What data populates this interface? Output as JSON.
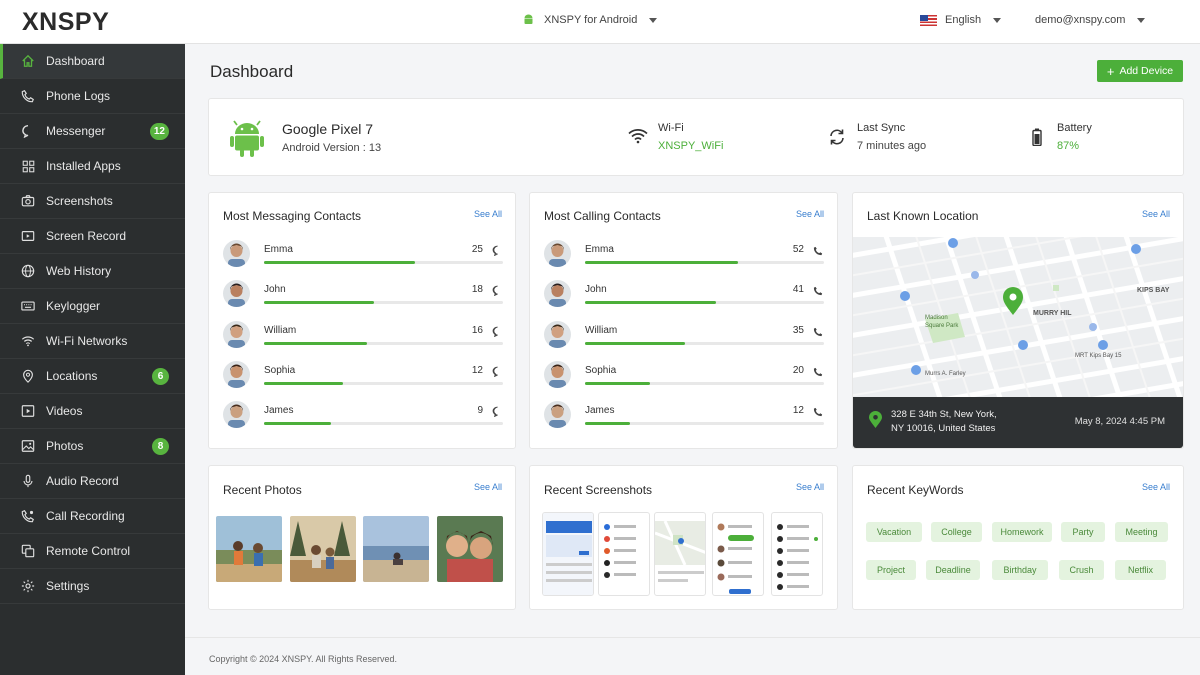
{
  "header": {
    "logo": "XNSPY",
    "device_selector": "XNSPY for Android",
    "language": "English",
    "user_email": "demo@xnspy.com"
  },
  "sidebar": {
    "items": [
      {
        "label": "Dashboard",
        "icon": "home-icon",
        "active": true
      },
      {
        "label": "Phone Logs",
        "icon": "phone-icon"
      },
      {
        "label": "Messenger",
        "icon": "chat-icon",
        "badge": "12"
      },
      {
        "label": "Installed Apps",
        "icon": "apps-icon"
      },
      {
        "label": "Screenshots",
        "icon": "camera-icon"
      },
      {
        "label": "Screen Record",
        "icon": "video-record-icon"
      },
      {
        "label": "Web History",
        "icon": "globe-icon"
      },
      {
        "label": "Keylogger",
        "icon": "keyboard-icon"
      },
      {
        "label": "Wi-Fi Networks",
        "icon": "wifi-icon"
      },
      {
        "label": "Locations",
        "icon": "location-pin-icon",
        "badge": "6"
      },
      {
        "label": "Videos",
        "icon": "film-icon"
      },
      {
        "label": "Photos",
        "icon": "image-icon",
        "badge": "8"
      },
      {
        "label": "Audio Record",
        "icon": "microphone-icon"
      },
      {
        "label": "Call Recording",
        "icon": "phone-record-icon"
      },
      {
        "label": "Remote Control",
        "icon": "remote-icon"
      },
      {
        "label": "Settings",
        "icon": "gear-icon"
      }
    ]
  },
  "main": {
    "title": "Dashboard",
    "add_device_label": "Add Device",
    "device": {
      "name": "Google Pixel 7",
      "android_version": "Android Version : 13",
      "wifi_label": "Wi-Fi",
      "wifi_value": "XNSPY_WiFi",
      "sync_label": "Last Sync",
      "sync_value": "7 minutes ago",
      "battery_label": "Battery",
      "battery_value": "87%"
    },
    "messaging": {
      "title": "Most Messaging Contacts",
      "see_all": "See All",
      "contacts": [
        {
          "name": "Emma",
          "count": "25",
          "fill": 0.63
        },
        {
          "name": "John",
          "count": "18",
          "fill": 0.46
        },
        {
          "name": "William",
          "count": "16",
          "fill": 0.43
        },
        {
          "name": "Sophia",
          "count": "12",
          "fill": 0.33
        },
        {
          "name": "James",
          "count": "9",
          "fill": 0.28
        }
      ]
    },
    "calling": {
      "title": "Most Calling Contacts",
      "see_all": "See All",
      "contacts": [
        {
          "name": "Emma",
          "count": "52",
          "fill": 0.64
        },
        {
          "name": "John",
          "count": "41",
          "fill": 0.55
        },
        {
          "name": "William",
          "count": "35",
          "fill": 0.42
        },
        {
          "name": "Sophia",
          "count": "20",
          "fill": 0.27
        },
        {
          "name": "James",
          "count": "12",
          "fill": 0.19
        }
      ]
    },
    "location": {
      "title": "Last Known Location",
      "see_all": "See All",
      "address_line1": "328 E 34th St, New York,",
      "address_line2": "NY 10016, United States",
      "time": "May 8, 2024 4:45 PM",
      "map_labels": [
        "MURRY HIL",
        "KIPS BAY",
        "Madison Square Park",
        "Murrs A. Farley",
        "MRT Kips Bay 15"
      ]
    },
    "photos": {
      "title": "Recent Photos",
      "see_all": "See All"
    },
    "screenshots": {
      "title": "Recent Screenshots",
      "see_all": "See All"
    },
    "keywords": {
      "title": "Recent KeyWords",
      "see_all": "See All",
      "row1": [
        "Vacation",
        "College",
        "Homework",
        "Party",
        "Meeting"
      ],
      "row2": [
        "Project",
        "Deadline",
        "Birthday",
        "Crush",
        "Netflix"
      ]
    }
  },
  "footer": {
    "copyright": "Copyright © 2024 XNSPY. All Rights Reserved."
  },
  "colors": {
    "accent": "#4caf3a",
    "sidebar": "#2b2e2f",
    "link": "#3a7fcf"
  }
}
